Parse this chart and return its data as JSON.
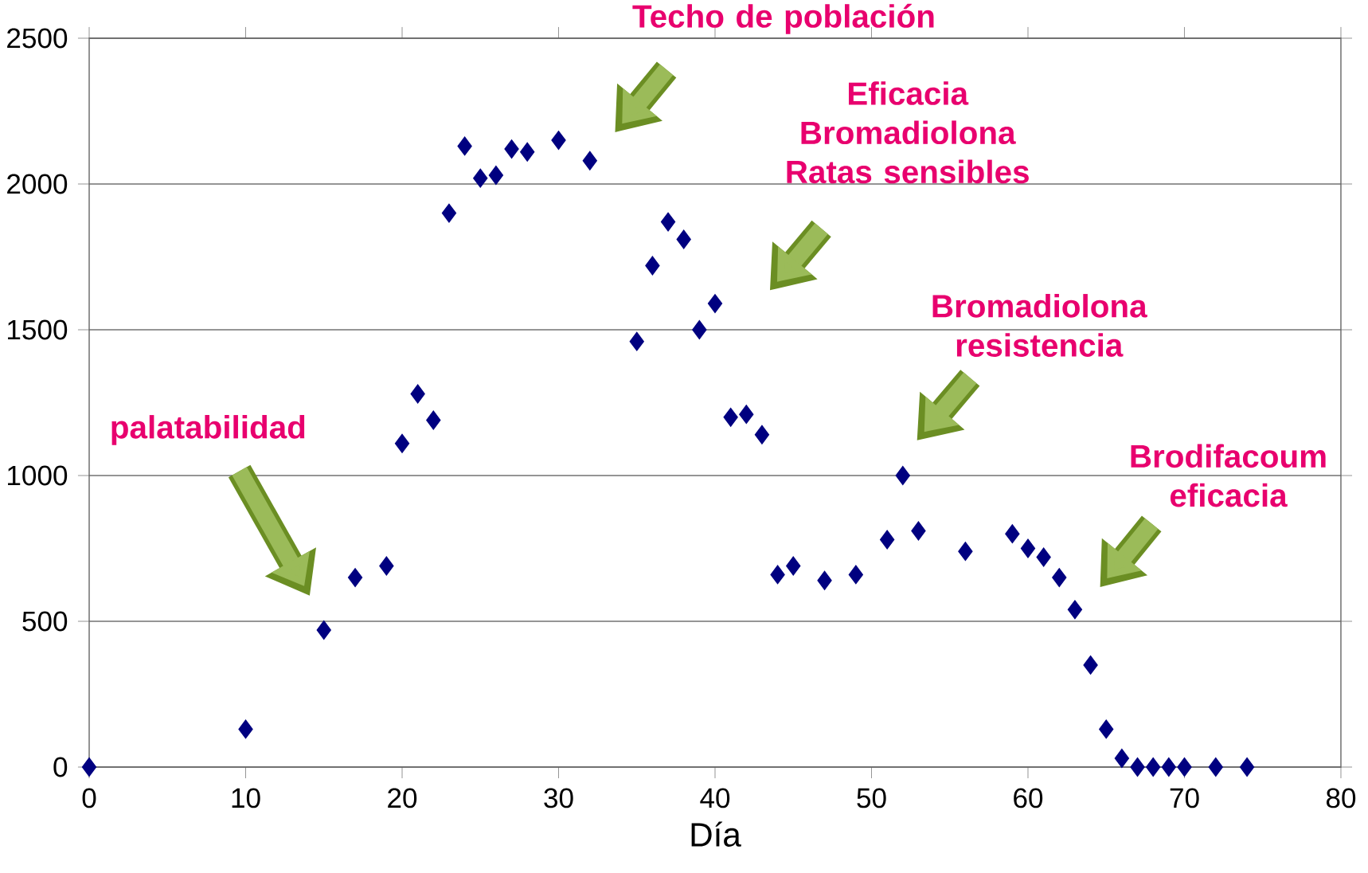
{
  "chart_data": {
    "type": "scatter",
    "xlabel": "Día",
    "x": [
      0,
      10,
      15,
      17,
      19,
      20,
      21,
      22,
      23,
      24,
      25,
      26,
      27,
      28,
      30,
      32,
      35,
      36,
      37,
      38,
      39,
      40,
      41,
      42,
      43,
      44,
      45,
      47,
      49,
      51,
      52,
      53,
      56,
      59,
      60,
      61,
      62,
      63,
      64,
      65,
      66,
      67,
      68,
      69,
      70,
      72,
      74
    ],
    "series": [
      {
        "color": "#000080",
        "values": [
          0,
          130,
          470,
          650,
          690,
          1110,
          1280,
          1190,
          1900,
          2130,
          2020,
          2030,
          2120,
          2110,
          2150,
          2080,
          1460,
          1720,
          1870,
          1810,
          1500,
          1590,
          1200,
          1210,
          1140,
          660,
          690,
          640,
          660,
          780,
          1000,
          810,
          740,
          800,
          750,
          720,
          650,
          540,
          350,
          130,
          30,
          0,
          0,
          0,
          0,
          0,
          0
        ]
      }
    ],
    "xlim": [
      0,
      80
    ],
    "xticks": [
      0,
      10,
      20,
      30,
      40,
      50,
      60,
      70,
      80
    ],
    "ylim": [
      0,
      2500
    ],
    "yticks": [
      0,
      500,
      1000,
      1500,
      2000,
      2500
    ],
    "grid": "y",
    "marker": "diamond",
    "annotations": [
      "palatabilidad",
      "Techo de población",
      "Eficacia Bromadiolona Ratas sensibles",
      "Bromadiolona resistencia",
      "Brodifacoum eficacia"
    ]
  }
}
